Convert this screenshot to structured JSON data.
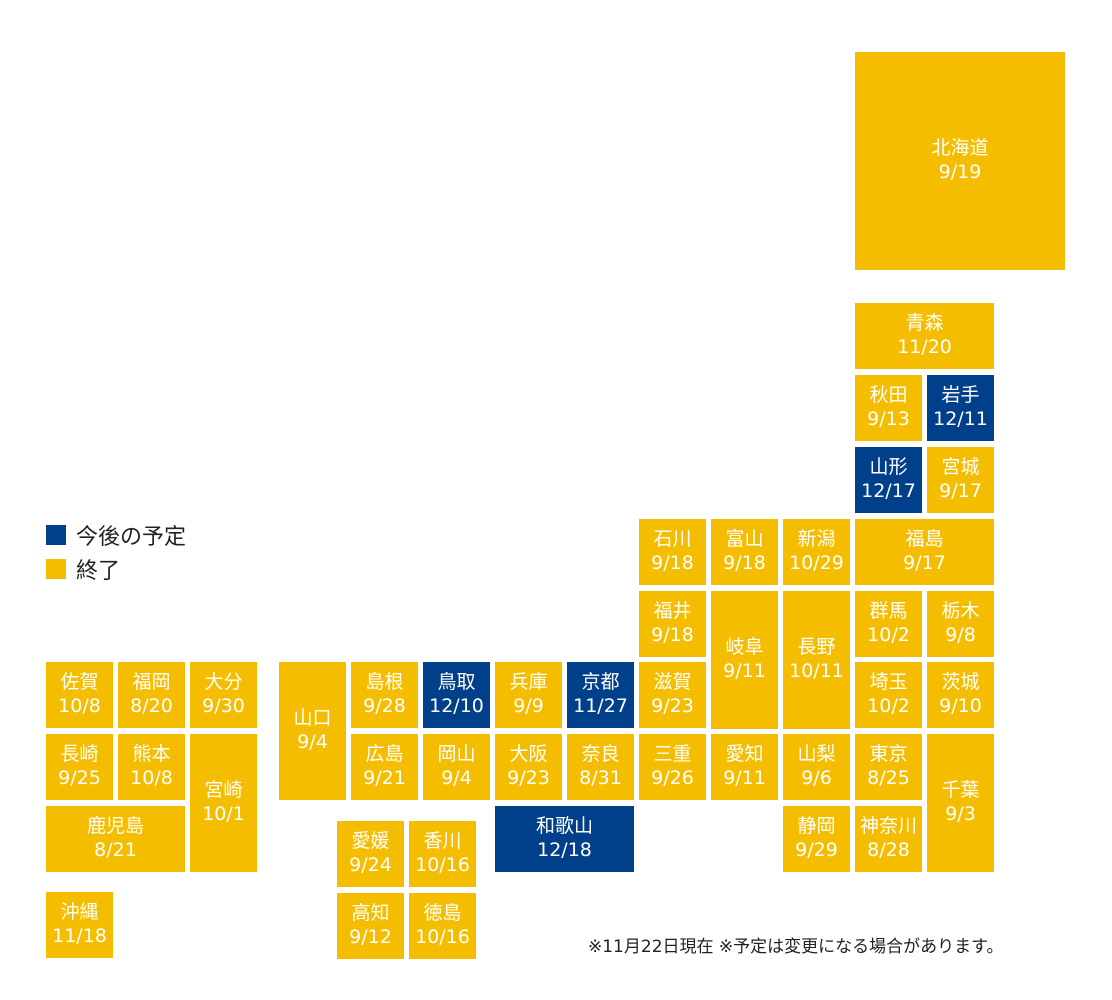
{
  "legend": {
    "planned_label": "今後の予定",
    "done_label": "終了",
    "planned_color": "#003f8a",
    "done_color": "#f5bd00"
  },
  "note": "※11月22日現在 ※予定は変更になる場合があります。",
  "prefectures": {
    "hokkaido": {
      "name": "北海道",
      "date": "9/19",
      "status": "done"
    },
    "aomori": {
      "name": "青森",
      "date": "11/20",
      "status": "done"
    },
    "akita": {
      "name": "秋田",
      "date": "9/13",
      "status": "done"
    },
    "iwate": {
      "name": "岩手",
      "date": "12/11",
      "status": "planned"
    },
    "yamagata": {
      "name": "山形",
      "date": "12/17",
      "status": "planned"
    },
    "miyagi": {
      "name": "宮城",
      "date": "9/17",
      "status": "done"
    },
    "ishikawa": {
      "name": "石川",
      "date": "9/18",
      "status": "done"
    },
    "toyama": {
      "name": "富山",
      "date": "9/18",
      "status": "done"
    },
    "niigata": {
      "name": "新潟",
      "date": "10/29",
      "status": "done"
    },
    "fukushima": {
      "name": "福島",
      "date": "9/17",
      "status": "done"
    },
    "fukui": {
      "name": "福井",
      "date": "9/18",
      "status": "done"
    },
    "gifu": {
      "name": "岐阜",
      "date": "9/11",
      "status": "done"
    },
    "nagano": {
      "name": "長野",
      "date": "10/11",
      "status": "done"
    },
    "gunma": {
      "name": "群馬",
      "date": "10/2",
      "status": "done"
    },
    "tochigi": {
      "name": "栃木",
      "date": "9/8",
      "status": "done"
    },
    "saga": {
      "name": "佐賀",
      "date": "10/8",
      "status": "done"
    },
    "fukuoka": {
      "name": "福岡",
      "date": "8/20",
      "status": "done"
    },
    "oita": {
      "name": "大分",
      "date": "9/30",
      "status": "done"
    },
    "yamaguchi": {
      "name": "山口",
      "date": "9/4",
      "status": "done"
    },
    "shimane": {
      "name": "島根",
      "date": "9/28",
      "status": "done"
    },
    "tottori": {
      "name": "鳥取",
      "date": "12/10",
      "status": "planned"
    },
    "hyogo": {
      "name": "兵庫",
      "date": "9/9",
      "status": "done"
    },
    "kyoto": {
      "name": "京都",
      "date": "11/27",
      "status": "planned"
    },
    "shiga": {
      "name": "滋賀",
      "date": "9/23",
      "status": "done"
    },
    "saitama": {
      "name": "埼玉",
      "date": "10/2",
      "status": "done"
    },
    "ibaraki": {
      "name": "茨城",
      "date": "9/10",
      "status": "done"
    },
    "nagasaki": {
      "name": "長崎",
      "date": "9/25",
      "status": "done"
    },
    "kumamoto": {
      "name": "熊本",
      "date": "10/8",
      "status": "done"
    },
    "miyazaki": {
      "name": "宮崎",
      "date": "10/1",
      "status": "done"
    },
    "hiroshima": {
      "name": "広島",
      "date": "9/21",
      "status": "done"
    },
    "okayama": {
      "name": "岡山",
      "date": "9/4",
      "status": "done"
    },
    "osaka": {
      "name": "大阪",
      "date": "9/23",
      "status": "done"
    },
    "nara": {
      "name": "奈良",
      "date": "8/31",
      "status": "done"
    },
    "mie": {
      "name": "三重",
      "date": "9/26",
      "status": "done"
    },
    "aichi": {
      "name": "愛知",
      "date": "9/11",
      "status": "done"
    },
    "yamanashi": {
      "name": "山梨",
      "date": "9/6",
      "status": "done"
    },
    "tokyo": {
      "name": "東京",
      "date": "8/25",
      "status": "done"
    },
    "chiba": {
      "name": "千葉",
      "date": "9/3",
      "status": "done"
    },
    "kagoshima": {
      "name": "鹿児島",
      "date": "8/21",
      "status": "done"
    },
    "ehime": {
      "name": "愛媛",
      "date": "9/24",
      "status": "done"
    },
    "kagawa": {
      "name": "香川",
      "date": "10/16",
      "status": "done"
    },
    "wakayama": {
      "name": "和歌山",
      "date": "12/18",
      "status": "planned"
    },
    "shizuoka": {
      "name": "静岡",
      "date": "9/29",
      "status": "done"
    },
    "kanagawa": {
      "name": "神奈川",
      "date": "8/28",
      "status": "done"
    },
    "okinawa": {
      "name": "沖縄",
      "date": "11/18",
      "status": "done"
    },
    "kochi": {
      "name": "高知",
      "date": "9/12",
      "status": "done"
    },
    "tokushima": {
      "name": "徳島",
      "date": "10/16",
      "status": "done"
    }
  }
}
